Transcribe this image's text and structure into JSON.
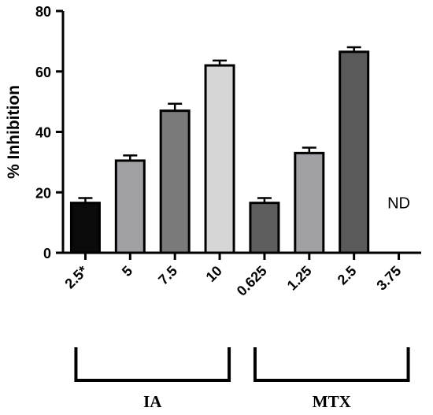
{
  "chart_data": {
    "type": "bar",
    "title": "",
    "xlabel": "",
    "ylabel": "% Inhibition",
    "ylim": [
      0,
      80
    ],
    "yticks": [
      0,
      20,
      40,
      60,
      80
    ],
    "categories": [
      "2.5*",
      "5",
      "7.5",
      "10",
      "0.625",
      "1.25",
      "2.5",
      "3.75"
    ],
    "values": [
      16.5,
      30.5,
      47.0,
      62.0,
      16.5,
      33.0,
      66.5,
      null
    ],
    "errors": [
      1.6,
      1.7,
      2.3,
      1.6,
      1.6,
      1.8,
      1.5,
      null
    ],
    "bar_colors": [
      "#0a0a0a",
      "#a0a0a5",
      "#7a7a7a",
      "#d6d6d6",
      "#5e5e5e",
      "#a0a0a5",
      "#5a5a5a",
      "#ffffff"
    ],
    "annotations": [
      {
        "category_index": 7,
        "text": "ND"
      }
    ],
    "groups": [
      {
        "label": "IA",
        "from_index": 0,
        "to_index": 3
      },
      {
        "label": "MTX",
        "from_index": 4,
        "to_index": 7
      }
    ],
    "grid": false,
    "legend": "none"
  }
}
